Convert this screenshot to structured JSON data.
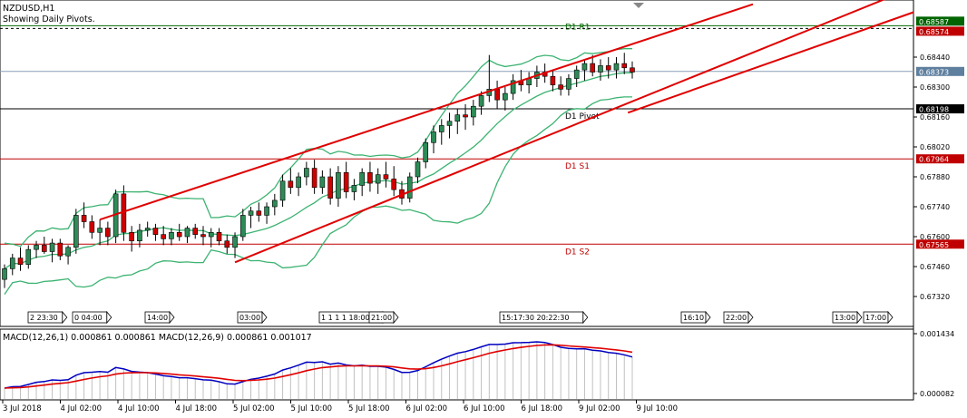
{
  "header": {
    "symbol": "NZDUSD,H1",
    "indicator_note": "Showing Daily Pivots."
  },
  "chart_data": [
    {
      "type": "candlestick",
      "title": "NZDUSD,H1",
      "ylim": [
        0.6718,
        0.6868
      ],
      "y_ticks": [
        "0.68440",
        "0.68300",
        "0.68160",
        "0.68020",
        "0.67880",
        "0.67740",
        "0.67600",
        "0.67460",
        "0.67320"
      ],
      "y_tick_values": [
        0.6844,
        0.683,
        0.6816,
        0.6802,
        0.6788,
        0.6774,
        0.676,
        0.6746,
        0.6732
      ],
      "price_labels": [
        {
          "text": "0.68587",
          "value": 0.68587,
          "color": "#006400"
        },
        {
          "text": "0.68574",
          "value": 0.68574,
          "color": "#c00000"
        },
        {
          "text": "0.68373",
          "value": 0.68373,
          "color": "#5f7f9f"
        },
        {
          "text": "0.68198",
          "value": 0.68198,
          "color": "#000000"
        },
        {
          "text": "0.67964",
          "value": 0.67964,
          "color": "#c00000"
        },
        {
          "text": "0.67565",
          "value": 0.67565,
          "color": "#c00000"
        }
      ],
      "pivot_levels": [
        {
          "name": "D1 R1",
          "value": 0.68587,
          "color": "#006400"
        },
        {
          "name": "D1 Pivot",
          "value": 0.68198,
          "color": "#000000"
        },
        {
          "name": "D1 S1",
          "value": 0.67964,
          "color": "#c00000"
        },
        {
          "name": "D1 S2",
          "value": 0.67565,
          "color": "#c00000"
        }
      ],
      "dashed_level": 0.68574,
      "bid_level": 0.68373,
      "ohlc": [
        [
          0.674,
          0.6747,
          0.6736,
          0.6745
        ],
        [
          0.6745,
          0.6752,
          0.6742,
          0.675
        ],
        [
          0.675,
          0.6755,
          0.6744,
          0.6747
        ],
        [
          0.6747,
          0.6756,
          0.6745,
          0.6754
        ],
        [
          0.6754,
          0.6758,
          0.675,
          0.6756
        ],
        [
          0.6756,
          0.676,
          0.6752,
          0.6753
        ],
        [
          0.6753,
          0.6759,
          0.6748,
          0.6757
        ],
        [
          0.6757,
          0.6759,
          0.6749,
          0.6751
        ],
        [
          0.6751,
          0.6756,
          0.6747,
          0.6755
        ],
        [
          0.6755,
          0.6773,
          0.6752,
          0.677
        ],
        [
          0.677,
          0.6776,
          0.6764,
          0.6767
        ],
        [
          0.6767,
          0.677,
          0.6759,
          0.6762
        ],
        [
          0.6762,
          0.6768,
          0.6756,
          0.6764
        ],
        [
          0.6764,
          0.6767,
          0.6756,
          0.676
        ],
        [
          0.676,
          0.6782,
          0.6757,
          0.678
        ],
        [
          0.678,
          0.6784,
          0.6758,
          0.6762
        ],
        [
          0.6762,
          0.6765,
          0.6753,
          0.6758
        ],
        [
          0.6758,
          0.6766,
          0.6755,
          0.6763
        ],
        [
          0.6763,
          0.6767,
          0.676,
          0.6764
        ],
        [
          0.6764,
          0.6766,
          0.6758,
          0.6761
        ],
        [
          0.6761,
          0.6765,
          0.6756,
          0.6759
        ],
        [
          0.6759,
          0.6764,
          0.6756,
          0.6762
        ],
        [
          0.6762,
          0.6766,
          0.6758,
          0.676
        ],
        [
          0.676,
          0.6765,
          0.6757,
          0.6764
        ],
        [
          0.6764,
          0.6766,
          0.6759,
          0.6761
        ],
        [
          0.6761,
          0.6765,
          0.6756,
          0.676
        ],
        [
          0.676,
          0.6764,
          0.6755,
          0.6762
        ],
        [
          0.6762,
          0.6764,
          0.6756,
          0.6758
        ],
        [
          0.6758,
          0.6761,
          0.6752,
          0.6755
        ],
        [
          0.6755,
          0.6762,
          0.675,
          0.676
        ],
        [
          0.676,
          0.6773,
          0.6758,
          0.677
        ],
        [
          0.677,
          0.6774,
          0.6764,
          0.6772
        ],
        [
          0.6772,
          0.6776,
          0.6767,
          0.677
        ],
        [
          0.677,
          0.6776,
          0.6766,
          0.6774
        ],
        [
          0.6774,
          0.678,
          0.677,
          0.6777
        ],
        [
          0.6777,
          0.6789,
          0.6774,
          0.6786
        ],
        [
          0.6786,
          0.6792,
          0.678,
          0.6783
        ],
        [
          0.6783,
          0.679,
          0.6779,
          0.6788
        ],
        [
          0.6788,
          0.6795,
          0.6784,
          0.6792
        ],
        [
          0.6792,
          0.6796,
          0.678,
          0.6783
        ],
        [
          0.6783,
          0.6791,
          0.678,
          0.6788
        ],
        [
          0.6788,
          0.6792,
          0.6775,
          0.6778
        ],
        [
          0.6778,
          0.6793,
          0.6774,
          0.679
        ],
        [
          0.679,
          0.6795,
          0.6778,
          0.6781
        ],
        [
          0.6781,
          0.6787,
          0.6777,
          0.6784
        ],
        [
          0.6784,
          0.6792,
          0.6779,
          0.679
        ],
        [
          0.679,
          0.6795,
          0.6781,
          0.6785
        ],
        [
          0.6785,
          0.6792,
          0.678,
          0.6789
        ],
        [
          0.6789,
          0.6795,
          0.6783,
          0.6787
        ],
        [
          0.6787,
          0.6793,
          0.6779,
          0.6782
        ],
        [
          0.6782,
          0.6786,
          0.6775,
          0.6778
        ],
        [
          0.6778,
          0.679,
          0.6776,
          0.6788
        ],
        [
          0.6788,
          0.6797,
          0.6785,
          0.6795
        ],
        [
          0.6795,
          0.6806,
          0.6792,
          0.6804
        ],
        [
          0.6804,
          0.6812,
          0.6799,
          0.6809
        ],
        [
          0.6809,
          0.6815,
          0.6803,
          0.6812
        ],
        [
          0.6812,
          0.6818,
          0.6806,
          0.6814
        ],
        [
          0.6814,
          0.682,
          0.6808,
          0.6817
        ],
        [
          0.6817,
          0.6822,
          0.681,
          0.6816
        ],
        [
          0.6816,
          0.6824,
          0.6812,
          0.6821
        ],
        [
          0.6821,
          0.6828,
          0.6817,
          0.6826
        ],
        [
          0.6826,
          0.6845,
          0.6823,
          0.6829
        ],
        [
          0.6829,
          0.6833,
          0.682,
          0.6824
        ],
        [
          0.6824,
          0.683,
          0.6819,
          0.6827
        ],
        [
          0.6827,
          0.6836,
          0.6824,
          0.6833
        ],
        [
          0.6833,
          0.6838,
          0.6828,
          0.6831
        ],
        [
          0.6831,
          0.6837,
          0.6827,
          0.6834
        ],
        [
          0.6834,
          0.684,
          0.683,
          0.6837
        ],
        [
          0.6837,
          0.6841,
          0.6832,
          0.6835
        ],
        [
          0.6835,
          0.6838,
          0.6828,
          0.6831
        ],
        [
          0.6831,
          0.6835,
          0.6826,
          0.6829
        ],
        [
          0.6829,
          0.6836,
          0.6826,
          0.6834
        ],
        [
          0.6834,
          0.684,
          0.683,
          0.6838
        ],
        [
          0.6838,
          0.6843,
          0.6833,
          0.6841
        ],
        [
          0.6841,
          0.6845,
          0.6835,
          0.6837
        ],
        [
          0.6837,
          0.6843,
          0.6833,
          0.684
        ],
        [
          0.684,
          0.6844,
          0.6834,
          0.6838
        ],
        [
          0.6838,
          0.6844,
          0.6834,
          0.6841
        ],
        [
          0.6841,
          0.6846,
          0.6836,
          0.6839
        ],
        [
          0.6839,
          0.6842,
          0.6834,
          0.6837
        ]
      ],
      "x_labels": [
        "2 23:30",
        "0 04:00",
        "14:00",
        "03:00",
        "1 1 1 1 18:00",
        "21:00",
        "15:17:30 20:22:30",
        "16:10",
        "22:00",
        "13:00",
        "17:00"
      ],
      "date_labels": [
        "3 Jul 2018",
        "4 Jul 02:00",
        "4 Jul 10:00",
        "4 Jul 18:00",
        "5 Jul 02:00",
        "5 Jul 10:00",
        "5 Jul 18:00",
        "6 Jul 02:00",
        "6 Jul 10:00",
        "6 Jul 18:00",
        "9 Jul 02:00",
        "9 Jul 10:00"
      ],
      "channel_lines": [
        {
          "name": "upper",
          "color": "#e00000"
        },
        {
          "name": "lower",
          "color": "#e00000"
        },
        {
          "name": "outer",
          "color": "#e00000"
        }
      ],
      "bollinger_color": "#3cb371"
    },
    {
      "type": "line",
      "title": "MACD(12,26,1) 0.000861 0.000861 MACD(12,26,9) 0.000861 0.001017",
      "y_ticks": [
        "0.001434",
        "0.000082"
      ],
      "series": [
        {
          "name": "MACD(12,26,1)",
          "color": "#0000c0"
        },
        {
          "name": "MACD(12,26,9)",
          "color": "#e00000"
        }
      ]
    }
  ]
}
